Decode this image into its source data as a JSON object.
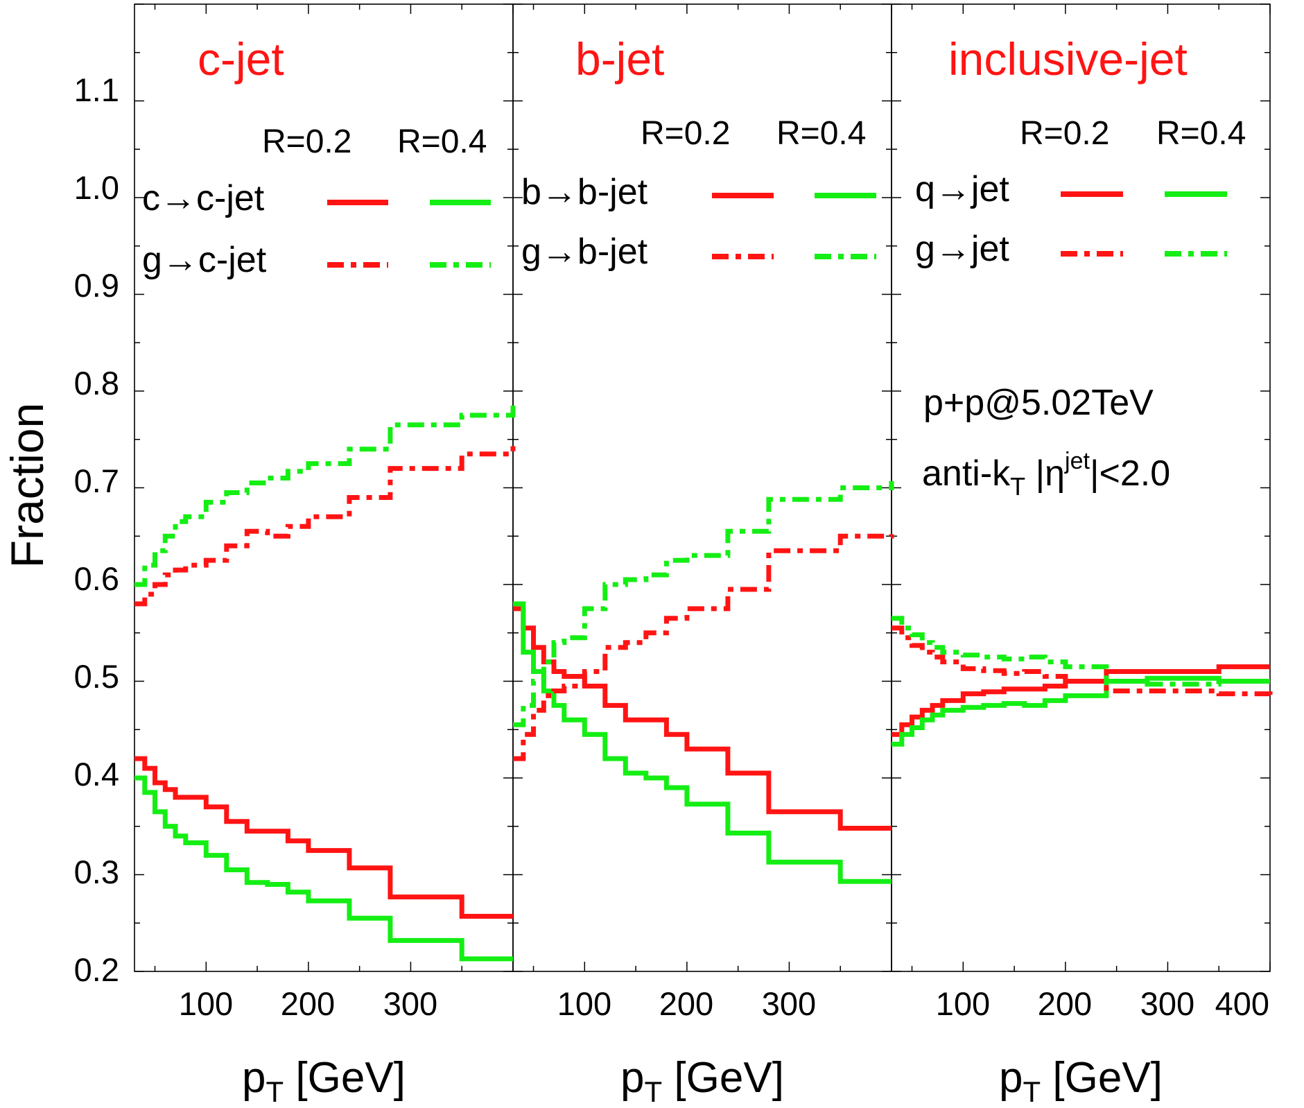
{
  "colors": {
    "r02": "#ff1414",
    "r04": "#14ee14",
    "axis": "#000000"
  },
  "y_axis": {
    "label": "Fraction",
    "ticks": [
      "0.2",
      "0.3",
      "0.4",
      "0.5",
      "0.6",
      "0.7",
      "0.8",
      "0.9",
      "1.0",
      "1.1"
    ]
  },
  "annotation": {
    "line1": "p+p@5.02TeV",
    "line2_prefix": "anti-k",
    "line2_sub": "T",
    "line2_mid": " |η",
    "line2_sup": "jet",
    "line2_suffix": "|<2.0"
  },
  "panels": [
    {
      "title": "c-jet",
      "xlabel_main": "p",
      "xlabel_sub": "T",
      "xlabel_unit": " [GeV]",
      "xticks": [
        "100",
        "200",
        "300"
      ],
      "legend": {
        "head_r02": "R=0.2",
        "head_r04": "R=0.4",
        "row1": "c→c-jet",
        "row2": "g→c-jet"
      }
    },
    {
      "title": "b-jet",
      "xlabel_main": "p",
      "xlabel_sub": "T",
      "xlabel_unit": " [GeV]",
      "xticks": [
        "100",
        "200",
        "300"
      ],
      "legend": {
        "head_r02": "R=0.2",
        "head_r04": "R=0.4",
        "row1": "b→b-jet",
        "row2": "g→b-jet"
      }
    },
    {
      "title": "inclusive-jet",
      "xlabel_main": "p",
      "xlabel_sub": "T",
      "xlabel_unit": " [GeV]",
      "xticks": [
        "100",
        "200",
        "300",
        "400"
      ],
      "legend": {
        "head_r02": "R=0.2",
        "head_r04": "R=0.4",
        "row1": "q→jet",
        "row2": "g→jet"
      }
    }
  ],
  "chart_data": [
    {
      "type": "line",
      "title": "c-jet",
      "xlabel": "pT [GeV]",
      "ylabel": "Fraction",
      "xlim": [
        30,
        400
      ],
      "ylim": [
        0.2,
        1.2
      ],
      "series": [
        {
          "name": "c→c-jet R=0.2",
          "style": "solid",
          "color": "#ff1414",
          "x": [
            30,
            40,
            50,
            60,
            70,
            80,
            100,
            120,
            140,
            160,
            180,
            200,
            240,
            280,
            350,
            400
          ],
          "y": [
            0.42,
            0.41,
            0.395,
            0.388,
            0.38,
            0.38,
            0.37,
            0.355,
            0.345,
            0.345,
            0.335,
            0.325,
            0.307,
            0.277,
            0.257,
            0.257
          ]
        },
        {
          "name": "c→c-jet R=0.4",
          "style": "solid",
          "color": "#14ee14",
          "x": [
            30,
            40,
            50,
            60,
            70,
            80,
            100,
            120,
            140,
            160,
            180,
            200,
            240,
            280,
            350,
            400
          ],
          "y": [
            0.4,
            0.385,
            0.365,
            0.35,
            0.34,
            0.333,
            0.32,
            0.305,
            0.292,
            0.29,
            0.282,
            0.273,
            0.255,
            0.232,
            0.213,
            0.213
          ]
        },
        {
          "name": "g→c-jet R=0.2",
          "style": "dashdot",
          "color": "#ff1414",
          "x": [
            30,
            40,
            50,
            60,
            70,
            80,
            100,
            120,
            140,
            160,
            180,
            200,
            240,
            280,
            350,
            400
          ],
          "y": [
            0.58,
            0.59,
            0.6,
            0.61,
            0.615,
            0.62,
            0.625,
            0.64,
            0.655,
            0.65,
            0.66,
            0.67,
            0.69,
            0.72,
            0.735,
            0.743
          ]
        },
        {
          "name": "g→c-jet R=0.4",
          "style": "dashdot",
          "color": "#14ee14",
          "x": [
            30,
            40,
            50,
            60,
            70,
            80,
            100,
            120,
            140,
            160,
            180,
            200,
            240,
            280,
            350,
            400
          ],
          "y": [
            0.6,
            0.62,
            0.635,
            0.65,
            0.665,
            0.67,
            0.685,
            0.695,
            0.705,
            0.71,
            0.717,
            0.725,
            0.74,
            0.765,
            0.775,
            0.785
          ]
        }
      ]
    },
    {
      "type": "line",
      "title": "b-jet",
      "xlabel": "pT [GeV]",
      "ylabel": "Fraction",
      "xlim": [
        30,
        400
      ],
      "ylim": [
        0.2,
        1.2
      ],
      "series": [
        {
          "name": "b→b-jet R=0.2",
          "style": "solid",
          "color": "#ff1414",
          "x": [
            30,
            40,
            50,
            60,
            70,
            80,
            100,
            120,
            140,
            160,
            180,
            200,
            240,
            280,
            350,
            400
          ],
          "y": [
            0.575,
            0.555,
            0.535,
            0.52,
            0.51,
            0.505,
            0.495,
            0.475,
            0.46,
            0.46,
            0.445,
            0.43,
            0.405,
            0.365,
            0.348,
            0.348
          ]
        },
        {
          "name": "b→b-jet R=0.4",
          "style": "solid",
          "color": "#14ee14",
          "x": [
            30,
            40,
            50,
            60,
            70,
            80,
            100,
            120,
            140,
            160,
            180,
            200,
            240,
            280,
            350,
            400
          ],
          "y": [
            0.58,
            0.53,
            0.51,
            0.49,
            0.475,
            0.46,
            0.445,
            0.42,
            0.405,
            0.4,
            0.39,
            0.373,
            0.343,
            0.313,
            0.293,
            0.293
          ]
        },
        {
          "name": "g→b-jet R=0.2",
          "style": "dashdot",
          "color": "#ff1414",
          "x": [
            30,
            40,
            50,
            60,
            70,
            80,
            100,
            120,
            140,
            160,
            180,
            200,
            240,
            280,
            350,
            400
          ],
          "y": [
            0.42,
            0.445,
            0.47,
            0.485,
            0.49,
            0.495,
            0.51,
            0.535,
            0.54,
            0.55,
            0.565,
            0.575,
            0.595,
            0.635,
            0.65,
            0.652
          ]
        },
        {
          "name": "g→b-jet R=0.4",
          "style": "dashdot",
          "color": "#14ee14",
          "x": [
            30,
            40,
            50,
            60,
            70,
            80,
            100,
            120,
            140,
            160,
            180,
            200,
            240,
            280,
            350,
            400
          ],
          "y": [
            0.455,
            0.475,
            0.5,
            0.52,
            0.54,
            0.545,
            0.575,
            0.6,
            0.605,
            0.61,
            0.625,
            0.63,
            0.655,
            0.688,
            0.7,
            0.707
          ]
        }
      ]
    },
    {
      "type": "line",
      "title": "inclusive-jet",
      "xlabel": "pT [GeV]",
      "ylabel": "Fraction",
      "xlim": [
        30,
        400
      ],
      "ylim": [
        0.2,
        1.2
      ],
      "series": [
        {
          "name": "q→jet R=0.2",
          "style": "solid",
          "color": "#ff1414",
          "x": [
            30,
            40,
            50,
            60,
            70,
            80,
            100,
            120,
            140,
            160,
            180,
            200,
            240,
            280,
            350,
            400
          ],
          "y": [
            0.445,
            0.455,
            0.463,
            0.47,
            0.475,
            0.48,
            0.487,
            0.489,
            0.492,
            0.492,
            0.495,
            0.5,
            0.51,
            0.51,
            0.515,
            0.515
          ]
        },
        {
          "name": "q→jet R=0.4",
          "style": "solid",
          "color": "#14ee14",
          "x": [
            30,
            40,
            50,
            60,
            70,
            80,
            100,
            120,
            140,
            160,
            180,
            200,
            240,
            280,
            350,
            400
          ],
          "y": [
            0.435,
            0.445,
            0.452,
            0.46,
            0.465,
            0.47,
            0.473,
            0.475,
            0.477,
            0.475,
            0.48,
            0.485,
            0.5,
            0.503,
            0.5,
            0.5
          ]
        },
        {
          "name": "g→jet R=0.2",
          "style": "dashdot",
          "color": "#ff1414",
          "x": [
            30,
            40,
            50,
            60,
            70,
            80,
            100,
            120,
            140,
            160,
            180,
            200,
            240,
            280,
            350,
            400
          ],
          "y": [
            0.555,
            0.545,
            0.537,
            0.53,
            0.525,
            0.52,
            0.513,
            0.511,
            0.508,
            0.51,
            0.505,
            0.5,
            0.49,
            0.49,
            0.487,
            0.485
          ]
        },
        {
          "name": "g→jet R=0.4",
          "style": "dashdot",
          "color": "#14ee14",
          "x": [
            30,
            40,
            50,
            60,
            70,
            80,
            100,
            120,
            140,
            160,
            180,
            200,
            240,
            280,
            350,
            400
          ],
          "y": [
            0.565,
            0.555,
            0.548,
            0.54,
            0.535,
            0.53,
            0.527,
            0.525,
            0.523,
            0.525,
            0.52,
            0.515,
            0.5,
            0.497,
            0.5,
            0.5
          ]
        }
      ]
    }
  ]
}
